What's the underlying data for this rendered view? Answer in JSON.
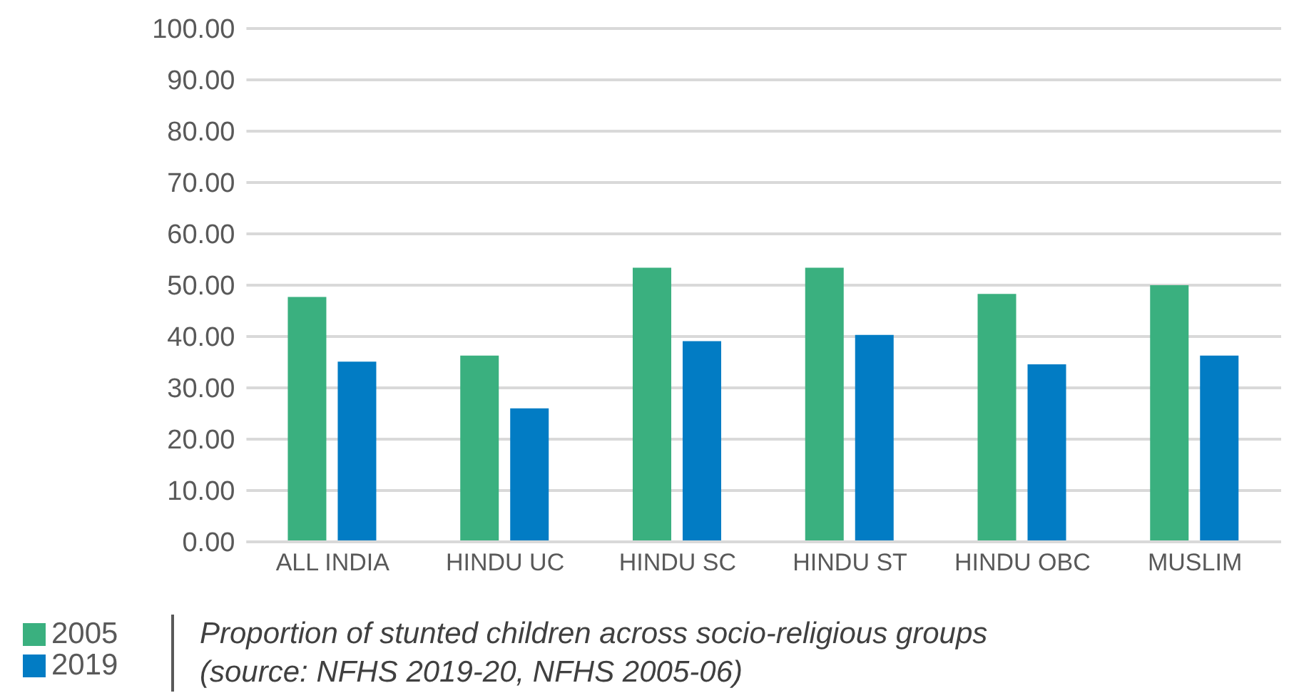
{
  "chart_data": {
    "type": "bar",
    "categories": [
      "ALL INDIA",
      "HINDU UC",
      "HINDU SC",
      "HINDU ST",
      "HINDU OBC",
      "MUSLIM"
    ],
    "series": [
      {
        "name": "2005",
        "color": "#3ab07f",
        "values": [
          47.7,
          36.3,
          53.4,
          53.4,
          48.3,
          50.0
        ]
      },
      {
        "name": "2019",
        "color": "#027cc4",
        "values": [
          35.1,
          26.0,
          39.1,
          40.3,
          34.6,
          36.3
        ]
      }
    ],
    "ylim": [
      0,
      100
    ],
    "yticks": [
      {
        "value": 0,
        "label": "0.00"
      },
      {
        "value": 10,
        "label": "10.00"
      },
      {
        "value": 20,
        "label": "20.00"
      },
      {
        "value": 30,
        "label": "30.00"
      },
      {
        "value": 40,
        "label": "40.00"
      },
      {
        "value": 50,
        "label": "50.00"
      },
      {
        "value": 60,
        "label": "60.00"
      },
      {
        "value": 70,
        "label": "70.00"
      },
      {
        "value": 80,
        "label": "80.00"
      },
      {
        "value": 90,
        "label": "90.00"
      },
      {
        "value": 100,
        "label": "100.00"
      }
    ],
    "grid": "y",
    "legend": "bottom left",
    "annotations": [
      "Proportion of stunted children across socio-religious groups\n(source: NFHS 2019-20, NFHS 2005-06)"
    ]
  }
}
